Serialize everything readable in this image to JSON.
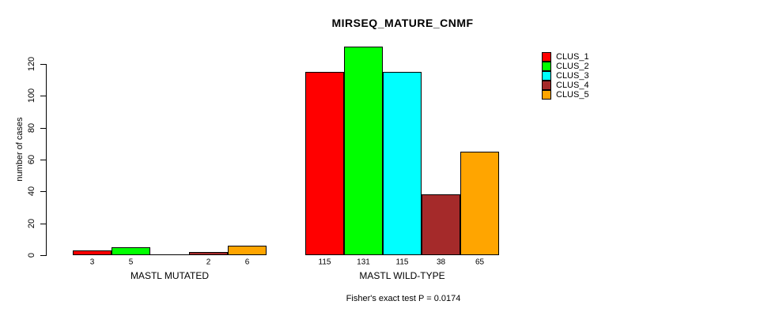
{
  "chart_data": {
    "type": "bar",
    "title": "MIRSEQ_MATURE_CNMF",
    "ylabel": "number of cases",
    "xlabel": "",
    "yticks": [
      0,
      20,
      40,
      60,
      80,
      100,
      120
    ],
    "ylim": [
      0,
      131
    ],
    "grid": false,
    "categories": [
      "MASTL MUTATED",
      "MASTL WILD-TYPE"
    ],
    "series": [
      {
        "name": "CLUS_1",
        "color": "#ff0000",
        "values": [
          3,
          115
        ]
      },
      {
        "name": "CLUS_2",
        "color": "#00ff00",
        "values": [
          5,
          131
        ]
      },
      {
        "name": "CLUS_3",
        "color": "#00ffff",
        "values": [
          0,
          115
        ]
      },
      {
        "name": "CLUS_4",
        "color": "#a52a2a",
        "values": [
          2,
          38
        ]
      },
      {
        "name": "CLUS_5",
        "color": "#ffa500",
        "values": [
          6,
          65
        ]
      }
    ],
    "legend": {
      "position": "right",
      "entries": [
        "CLUS_1",
        "CLUS_2",
        "CLUS_3",
        "CLUS_4",
        "CLUS_5"
      ]
    },
    "bar_value_labels": {
      "show": true,
      "hide_zero": true
    },
    "footer": "Fisher's exact test P = 0.0174"
  }
}
